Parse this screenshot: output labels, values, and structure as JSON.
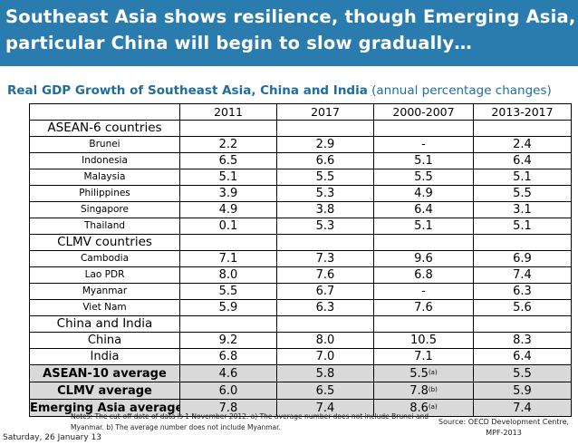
{
  "banner": {
    "line1": "Southeast Asia shows resilience, though Emerging Asia, in",
    "line2": "particular China will begin to slow gradually…"
  },
  "subtitle": {
    "bold": "Real GDP Growth of Southeast Asia, China and India",
    "paren": " (annual percentage changes)"
  },
  "table": {
    "headers": [
      "2011",
      "2017",
      "2000-2007",
      "2013-2017"
    ],
    "groups": {
      "asean6": "ASEAN-6 countries",
      "clmv": "CLMV countries",
      "china_india": "China and India"
    },
    "rows": [
      {
        "name": "Brunei",
        "v": [
          "2.2",
          "2.9",
          "-",
          "2.4"
        ]
      },
      {
        "name": "Indonesia",
        "v": [
          "6.5",
          "6.6",
          "5.1",
          "6.4"
        ]
      },
      {
        "name": "Malaysia",
        "v": [
          "5.1",
          "5.5",
          "5.5",
          "5.1"
        ]
      },
      {
        "name": "Philippines",
        "v": [
          "3.9",
          "5.3",
          "4.9",
          "5.5"
        ]
      },
      {
        "name": "Singapore",
        "v": [
          "4.9",
          "3.8",
          "6.4",
          "3.1"
        ]
      },
      {
        "name": "Thailand",
        "v": [
          "0.1",
          "5.3",
          "5.1",
          "5.1"
        ]
      },
      {
        "name": "Cambodia",
        "v": [
          "7.1",
          "7.3",
          "9.6",
          "6.9"
        ]
      },
      {
        "name": "Lao PDR",
        "v": [
          "8.0",
          "7.6",
          "6.8",
          "7.4"
        ]
      },
      {
        "name": "Myanmar",
        "v": [
          "5.5",
          "6.7",
          "-",
          "6.3"
        ]
      },
      {
        "name": "Viet Nam",
        "v": [
          "5.9",
          "6.3",
          "7.6",
          "5.6"
        ]
      },
      {
        "name": "China",
        "v": [
          "9.2",
          "8.0",
          "10.5",
          "8.3"
        ]
      },
      {
        "name": "India",
        "v": [
          "6.8",
          "7.0",
          "7.1",
          "6.4"
        ]
      },
      {
        "name": "ASEAN-10 average",
        "v": [
          "4.6",
          "5.8",
          "5.5",
          "5.5"
        ],
        "sup": "(a)"
      },
      {
        "name": "CLMV average",
        "v": [
          "6.0",
          "6.5",
          "7.8",
          "5.9"
        ],
        "sup": "(b)"
      },
      {
        "name": "Emerging Asia average",
        "v": [
          "7.8",
          "7.4",
          "8.6",
          "7.4"
        ],
        "sup": "(a)"
      }
    ]
  },
  "notes": {
    "line1": "Notes: The cut-off date of data is 1 November 2012. a) The average number does not include Brunei and",
    "line2": "Myanmar. b) The average number does not include Myanmar."
  },
  "source": {
    "line1": "Source: OECD Development Centre,",
    "line2": "MPF-2013"
  },
  "date": "Saturday, 26 January 13"
}
